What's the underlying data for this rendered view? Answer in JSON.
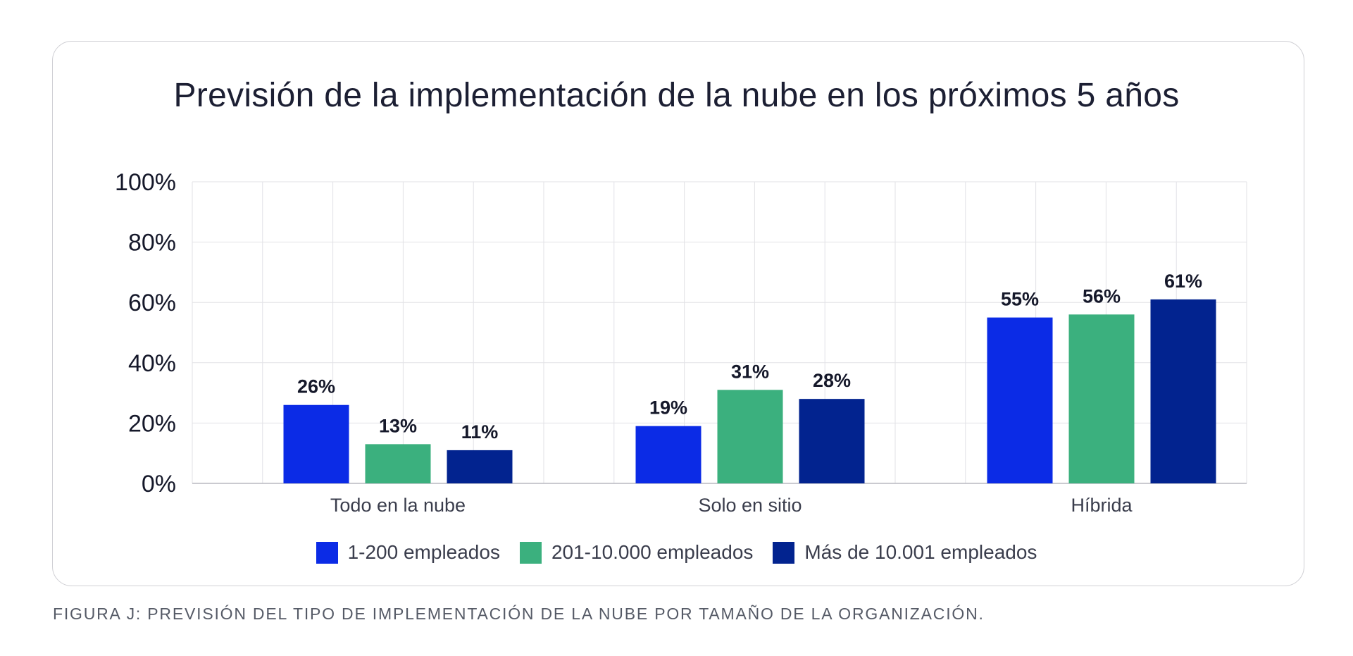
{
  "caption": "FIGURA J: PREVISIÓN DEL TIPO DE IMPLEMENTACIÓN DE LA NUBE POR TAMAÑO DE LA ORGANIZACIÓN.",
  "chart_data": {
    "type": "bar",
    "title": "Previsión de la implementación de la nube en los próximos 5 años",
    "categories": [
      "Todo en la nube",
      "Solo en sitio",
      "Híbrida"
    ],
    "series": [
      {
        "name": "1-200 empleados",
        "color": "#0b2be6",
        "values": [
          26,
          19,
          55
        ]
      },
      {
        "name": "201-10.000 empleados",
        "color": "#3bb07e",
        "values": [
          13,
          31,
          56
        ]
      },
      {
        "name": "Más de 10.001 empleados",
        "color": "#02238f",
        "values": [
          11,
          28,
          61
        ]
      }
    ],
    "data_labels": [
      [
        "26%",
        "19%",
        "55%"
      ],
      [
        "13%",
        "31%",
        "56%"
      ],
      [
        "11%",
        "28%",
        "61%"
      ]
    ],
    "ylim": [
      0,
      100
    ],
    "yticks": [
      0,
      20,
      40,
      60,
      80,
      100
    ],
    "ytick_labels": [
      "0%",
      "20%",
      "40%",
      "60%",
      "80%",
      "100%"
    ],
    "xlabel": "",
    "ylabel": "",
    "grid": true,
    "legend_position": "bottom"
  }
}
